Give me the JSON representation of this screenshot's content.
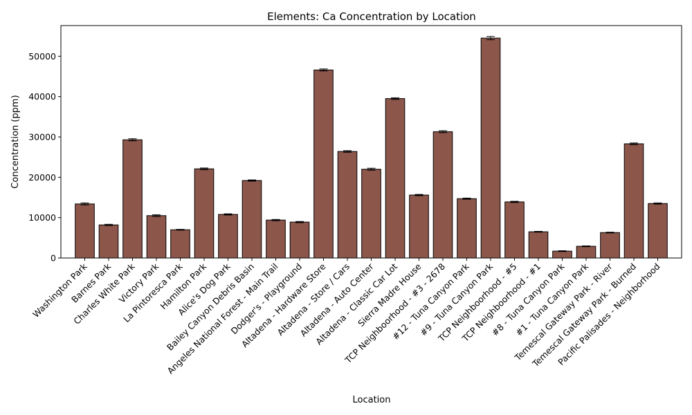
{
  "chart_data": {
    "type": "bar",
    "title": "Elements: Ca Concentration by Location",
    "xlabel": "Location",
    "ylabel": "Concentration (ppm)",
    "ylim": [
      0,
      57600
    ],
    "yticks": [
      0,
      10000,
      20000,
      30000,
      40000,
      50000
    ],
    "grid": false,
    "bar_color": "#8c564b",
    "edge_color": "#000000",
    "categories": [
      "Washington Park",
      "Barnes Park",
      "Charles White Park",
      "Victory Park",
      "La Pintoresca Park",
      "Hamilton Park",
      "Alice's Dog Park",
      "Bailey Canyon Debris Basin",
      "Angeles National Forest - Main Trail",
      "Dodger's - Playground",
      "Altadena - Hardware Store",
      "Altadena - Store / Cars",
      "Altadena - Auto Center",
      "Altadena - Classic Car Lot",
      "Sierra Madre House",
      "TCP Neighboorhood - #3 - 2678",
      "#12 - Tuna Canyon Park",
      "#9 - Tuna Canyon Park",
      "TCP Neighboorhood - #5",
      "TCP Neighboorhood - #1",
      "#8 - Tuna Canyon Park",
      "#1 - Tuna Canyon Park",
      "Temescal Gateway Park - River",
      "Temescal Gateway Park - Burned",
      "Pacific Palisades - Neighborhood"
    ],
    "values": [
      13400,
      8200,
      29300,
      10500,
      7000,
      22100,
      10800,
      19200,
      9400,
      8900,
      46600,
      26400,
      22000,
      39500,
      15600,
      31300,
      14700,
      54500,
      13900,
      6500,
      1700,
      2900,
      6300,
      28300,
      13500
    ],
    "errors": [
      250,
      150,
      250,
      200,
      100,
      200,
      150,
      150,
      150,
      150,
      250,
      200,
      250,
      200,
      150,
      250,
      150,
      400,
      150,
      100,
      100,
      100,
      100,
      200,
      150
    ]
  }
}
